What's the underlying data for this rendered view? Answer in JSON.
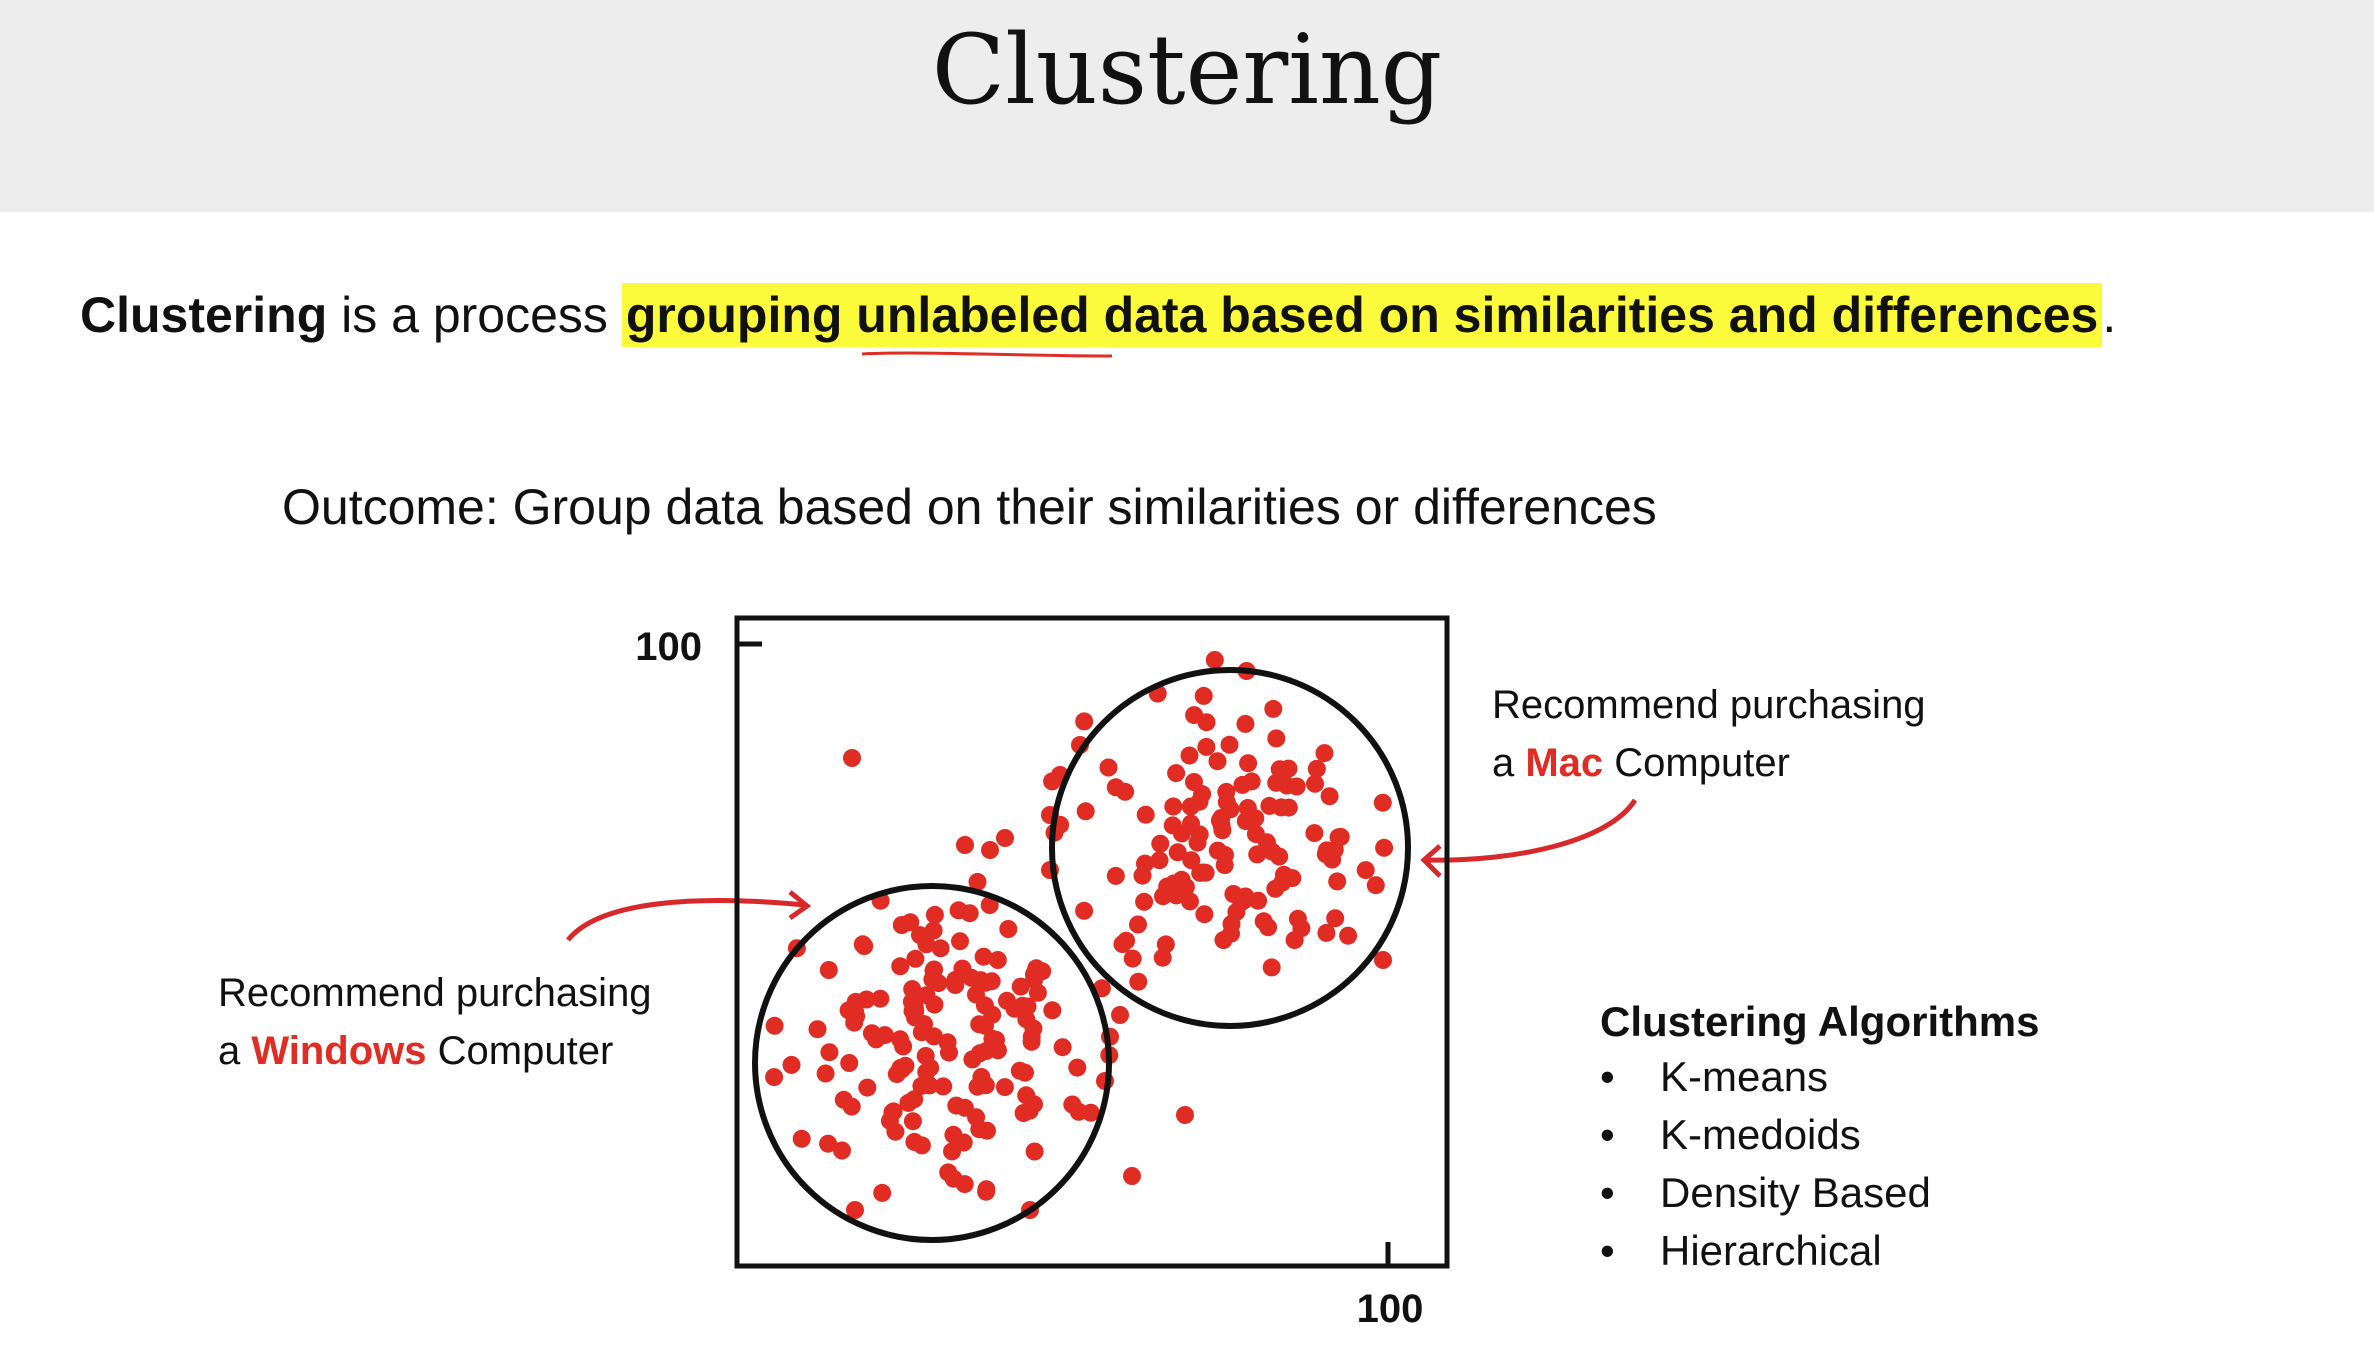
{
  "title": "Clustering",
  "definition": {
    "term": "Clustering",
    "text": " is a process ",
    "highlight": "grouping unlabeled data based on similarities and differences",
    "end": "."
  },
  "outcome": "Outcome: Group data based on their similarities or differences",
  "plot": {
    "y_tick": "100",
    "x_tick": "100",
    "point_color": "#e02c22"
  },
  "notes": {
    "mac": {
      "line1": "Recommend purchasing",
      "prefix": "a ",
      "brand": "Mac",
      "suffix": " Computer"
    },
    "windows": {
      "line1": "Recommend purchasing",
      "prefix": "a ",
      "brand": "Windows",
      "suffix": " Computer"
    }
  },
  "algorithms": {
    "heading": "Clustering Algorithms",
    "items": [
      "K-means",
      "K-medoids",
      "Density Based",
      "Hierarchical"
    ]
  },
  "colors": {
    "highlight": "#fbfb3c",
    "accent": "#e02c22",
    "title_bar": "#ededed"
  }
}
